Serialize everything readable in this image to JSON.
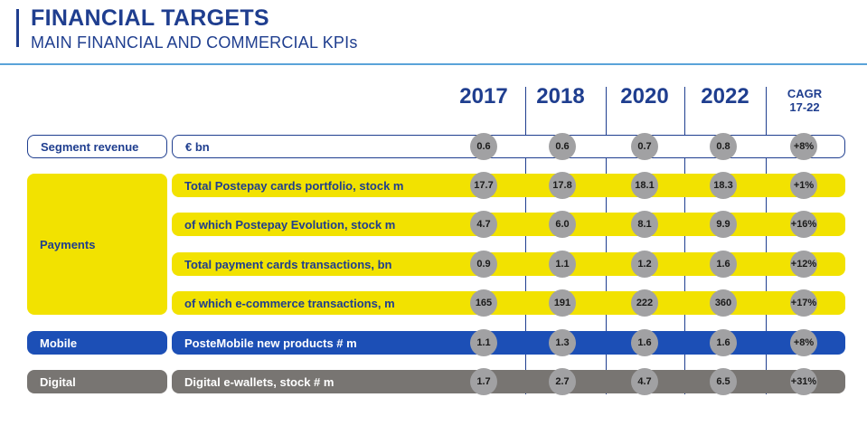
{
  "header": {
    "title": "FINANCIAL TARGETS",
    "subtitle": "MAIN FINANCIAL AND COMMERCIAL KPIs"
  },
  "columns": {
    "years": [
      "2017",
      "2018",
      "2020",
      "2022"
    ],
    "cagr_line1": "CAGR",
    "cagr_line2": "17-22"
  },
  "rows": [
    {
      "category": "Segment revenue",
      "kpi": "€ bn",
      "values": [
        "0.6",
        "0.6",
        "0.7",
        "0.8"
      ],
      "cagr": "+8%"
    },
    {
      "category": "Payments",
      "kpi": "Total Postepay cards portfolio, stock m",
      "values": [
        "17.7",
        "17.8",
        "18.1",
        "18.3"
      ],
      "cagr": "+1%"
    },
    {
      "category": "Payments",
      "kpi": "of which Postepay Evolution, stock m",
      "values": [
        "4.7",
        "6.0",
        "8.1",
        "9.9"
      ],
      "cagr": "+16%"
    },
    {
      "category": "Payments",
      "kpi": "Total payment cards transactions, bn",
      "values": [
        "0.9",
        "1.1",
        "1.2",
        "1.6"
      ],
      "cagr": "+12%"
    },
    {
      "category": "Payments",
      "kpi": "of which e-commerce transactions, m",
      "values": [
        "165",
        "191",
        "222",
        "360"
      ],
      "cagr": "+17%"
    },
    {
      "category": "Mobile",
      "kpi": "PosteMobile new products # m",
      "values": [
        "1.1",
        "1.3",
        "1.6",
        "1.6"
      ],
      "cagr": "+8%"
    },
    {
      "category": "Digital",
      "kpi": "Digital e-wallets, stock # m",
      "values": [
        "1.7",
        "2.7",
        "4.7",
        "6.5"
      ],
      "cagr": "+31%"
    }
  ],
  "colors": {
    "navy": "#1f3e8f",
    "yellow": "#f2e200",
    "blue": "#1c4fb6",
    "gray": "#787572",
    "circle": "#a1a1a3"
  }
}
